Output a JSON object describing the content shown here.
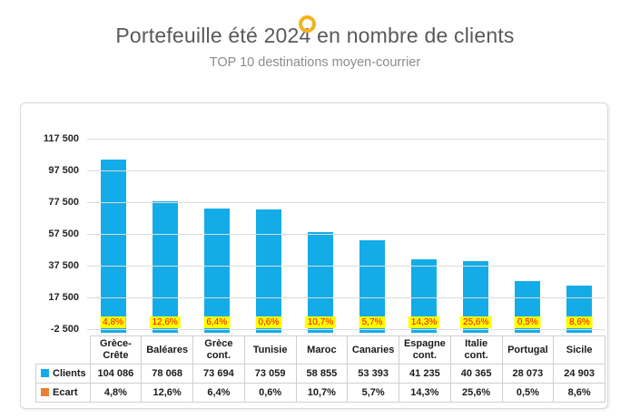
{
  "page": {
    "title": "Portefeuille été 2024 en nombre de clients",
    "subtitle": "TOP 10 destinations moyen-courrier"
  },
  "colors": {
    "bar_clients": "#14ACE8",
    "ecart_swatch": "#ED7D31",
    "data_label_background": "#FFFF00",
    "data_label_text": "#FF0000",
    "title_text": "#595959",
    "subtitle_text": "#8C8C8C",
    "gridline": "#DCDCDC",
    "logo_ring": "#F5B21B"
  },
  "chart_data": {
    "type": "bar",
    "title": "Portefeuille été 2024 en nombre de clients",
    "subtitle": "TOP 10 destinations moyen-courrier",
    "categories": [
      "Grèce-Crête",
      "Baléares",
      "Grèce cont.",
      "Tunisie",
      "Maroc",
      "Canaries",
      "Espagne cont.",
      "Italie cont.",
      "Portugal",
      "Sicile"
    ],
    "category_display": [
      "Grèce-\nCrête",
      "Baléares",
      "Grèce\ncont.",
      "Tunisie",
      "Maroc",
      "Canaries",
      "Espagne\ncont.",
      "Italie\ncont.",
      "Portugal",
      "Sicile"
    ],
    "series": [
      {
        "name": "Clients",
        "color": "#14ACE8",
        "values": [
          104086,
          78068,
          73694,
          73059,
          58855,
          53393,
          41235,
          40365,
          28073,
          24903
        ],
        "value_labels": [
          "104 086",
          "78 068",
          "73 694",
          "73 059",
          "58 855",
          "53 393",
          "41 235",
          "40 365",
          "28 073",
          "24 903"
        ]
      },
      {
        "name": "Ecart",
        "color": "#ED7D31",
        "values": [
          4.8,
          12.6,
          6.4,
          0.6,
          10.7,
          5.7,
          14.3,
          25.6,
          0.5,
          8.6
        ],
        "value_labels": [
          "4,8%",
          "12,6%",
          "6,4%",
          "0,6%",
          "10,7%",
          "5,7%",
          "14,3%",
          "25,6%",
          "0,5%",
          "8,6%"
        ]
      }
    ],
    "y_axis": {
      "min": -2500,
      "max": 117500,
      "step": 20000,
      "tick_labels": [
        "117 500",
        "97 500",
        "77 500",
        "57 500",
        "37 500",
        "17 500",
        "-2 500"
      ]
    },
    "grid": true,
    "legend_position": "data-table-left",
    "data_labels": {
      "series": "Ecart",
      "position": "inside-base",
      "background": "#FFFF00",
      "text_color": "#FF0000"
    }
  }
}
